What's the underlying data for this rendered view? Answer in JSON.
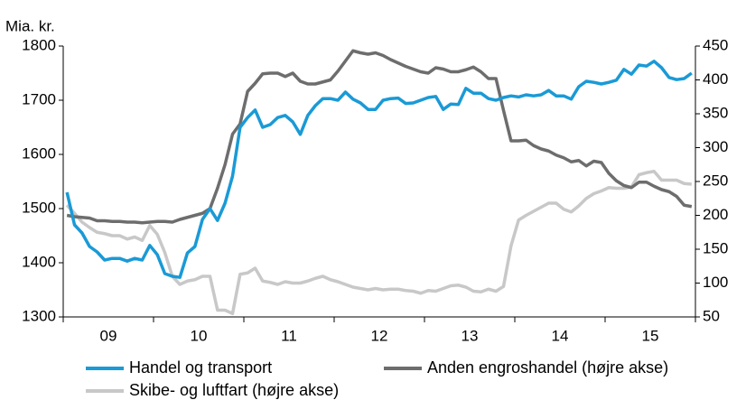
{
  "chart_data": {
    "type": "line",
    "ylabel": "Mia. kr.",
    "categories": [
      null,
      null,
      null,
      null,
      null,
      null,
      "09",
      null,
      null,
      null,
      null,
      null,
      null,
      null,
      null,
      null,
      null,
      null,
      "10",
      null,
      null,
      null,
      null,
      null,
      null,
      null,
      null,
      null,
      null,
      null,
      "11",
      null,
      null,
      null,
      null,
      null,
      null,
      null,
      null,
      null,
      null,
      null,
      "12",
      null,
      null,
      null,
      null,
      null,
      null,
      null,
      null,
      null,
      null,
      null,
      "13",
      null,
      null,
      null,
      null,
      null,
      null,
      null,
      null,
      null,
      null,
      null,
      "14",
      null,
      null,
      null,
      null,
      null,
      null,
      null,
      null,
      null,
      null,
      null,
      "15",
      null,
      null,
      null,
      null,
      null
    ],
    "ylim": [
      1300,
      1800
    ],
    "yticks": [
      1300,
      1400,
      1500,
      1600,
      1700,
      1800
    ],
    "y2lim": [
      50,
      450
    ],
    "y2ticks": [
      50,
      100,
      150,
      200,
      250,
      300,
      350,
      400,
      450
    ],
    "grid": false,
    "series": [
      {
        "name": "Handel og transport",
        "color": "#1a9ad6",
        "values": [
          1530,
          1470,
          1455,
          1430,
          1420,
          1405,
          1408,
          1408,
          1403,
          1408,
          1405,
          1432,
          1415,
          1380,
          1375,
          1373,
          1418,
          1430,
          1480,
          1500,
          1478,
          1510,
          1560,
          1650,
          1668,
          1682,
          1650,
          1655,
          1668,
          1672,
          1660,
          1637,
          1672,
          1690,
          1703,
          1703,
          1700,
          1715,
          1702,
          1695,
          1683,
          1683,
          1700,
          1703,
          1704,
          1694,
          1695,
          1700,
          1705,
          1707,
          1683,
          1693,
          1692,
          1722,
          1713,
          1713,
          1703,
          1700,
          1705,
          1708,
          1706,
          1710,
          1708,
          1710,
          1718,
          1708,
          1708,
          1702,
          1725,
          1735,
          1733,
          1730,
          1733,
          1737,
          1757,
          1748,
          1765,
          1763,
          1772,
          1760,
          1742,
          1738,
          1740,
          1750
        ]
      },
      {
        "name": "Anden engroshandel (højre akse)",
        "color": "#6d6d6d",
        "axis": "y2",
        "values": [
          200,
          198,
          197,
          196,
          192,
          192,
          191,
          191,
          190,
          190,
          189,
          190,
          191,
          191,
          190,
          194,
          197,
          200,
          203,
          210,
          240,
          275,
          320,
          335,
          383,
          395,
          409,
          410,
          410,
          405,
          410,
          398,
          394,
          394,
          397,
          400,
          413,
          428,
          443,
          440,
          438,
          440,
          436,
          430,
          425,
          420,
          416,
          412,
          410,
          418,
          416,
          412,
          412,
          415,
          419,
          412,
          402,
          402,
          355,
          310,
          310,
          311,
          303,
          298,
          295,
          289,
          285,
          279,
          281,
          273,
          280,
          278,
          262,
          251,
          244,
          241,
          249,
          249,
          243,
          238,
          235,
          228,
          215,
          213
        ]
      },
      {
        "name": "Skibe- og luftfart (højre akse)",
        "color": "#c8c8c8",
        "axis": "y2",
        "values": [
          215,
          203,
          190,
          182,
          175,
          173,
          170,
          170,
          165,
          168,
          163,
          185,
          172,
          145,
          110,
          98,
          103,
          105,
          110,
          110,
          60,
          60,
          55,
          113,
          115,
          122,
          103,
          101,
          98,
          102,
          100,
          100,
          103,
          107,
          110,
          105,
          102,
          98,
          94,
          92,
          90,
          92,
          90,
          91,
          91,
          89,
          88,
          85,
          89,
          88,
          92,
          96,
          97,
          94,
          88,
          87,
          91,
          88,
          95,
          155,
          193,
          200,
          206,
          212,
          218,
          218,
          209,
          205,
          214,
          225,
          232,
          236,
          241,
          240,
          240,
          242,
          260,
          263,
          265,
          252,
          252,
          252,
          247,
          246
        ]
      }
    ]
  }
}
